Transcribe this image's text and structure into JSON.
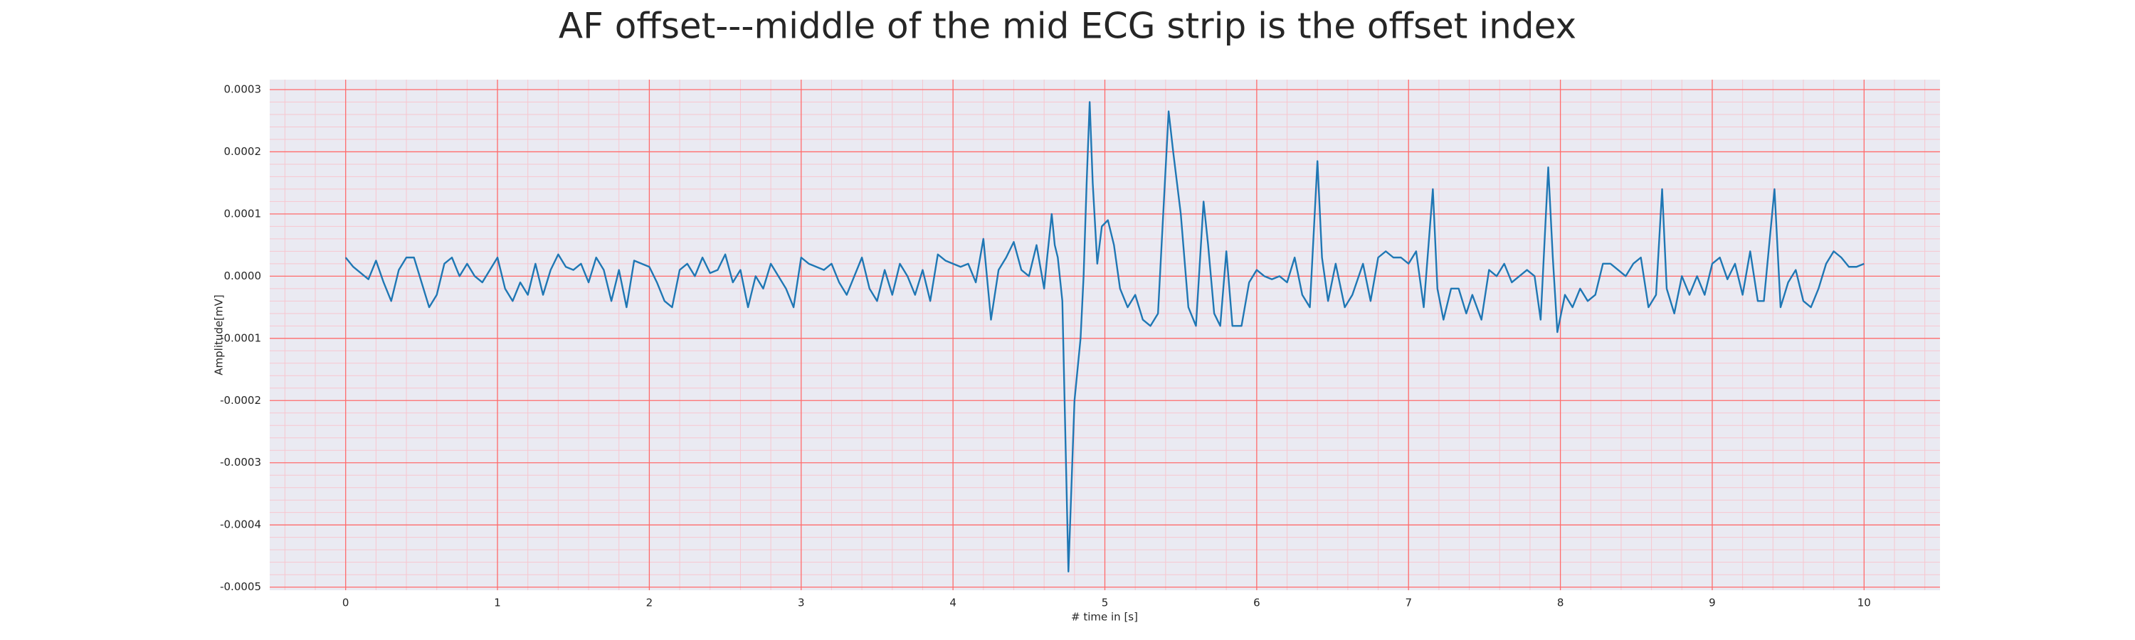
{
  "chart_data": {
    "type": "line",
    "title": "AF offset---middle of the mid ECG strip is the offset index",
    "xlabel": "# time in [s]",
    "ylabel": "Amplitude[mV]",
    "xlim": [
      -0.5,
      10.5
    ],
    "xticks": [
      0,
      1,
      2,
      3,
      4,
      5,
      6,
      7,
      8,
      9,
      10
    ],
    "ylim": [
      -0.000505,
      0.000316
    ],
    "yticks": [
      0.0003,
      0.0002,
      0.0001,
      {
        "value": 0,
        "label": "0.0000"
      },
      -0.0001,
      -0.0002,
      -0.0003,
      -0.0004,
      -0.0005
    ],
    "grid": true,
    "minor_grid": true,
    "series": [
      {
        "color": "#1f77b4",
        "x": [
          0,
          0.05,
          0.1,
          0.15,
          0.2,
          0.25,
          0.3,
          0.35,
          0.4,
          0.45,
          0.5,
          0.55,
          0.6,
          0.65,
          0.7,
          0.75,
          0.8,
          0.85,
          0.9,
          0.95,
          1,
          1.05,
          1.1,
          1.15,
          1.2,
          1.25,
          1.3,
          1.35,
          1.4,
          1.45,
          1.5,
          1.55,
          1.6,
          1.65,
          1.7,
          1.75,
          1.8,
          1.85,
          1.9,
          1.95,
          2,
          2.05,
          2.1,
          2.15,
          2.2,
          2.25,
          2.3,
          2.35,
          2.4,
          2.45,
          2.5,
          2.55,
          2.6,
          2.65,
          2.7,
          2.75,
          2.8,
          2.85,
          2.9,
          2.95,
          3,
          3.05,
          3.1,
          3.15,
          3.2,
          3.25,
          3.3,
          3.35,
          3.4,
          3.45,
          3.5,
          3.55,
          3.6,
          3.65,
          3.7,
          3.75,
          3.8,
          3.85,
          3.9,
          3.95,
          4,
          4.05,
          4.1,
          4.15,
          4.2,
          4.25,
          4.3,
          4.35,
          4.4,
          4.45,
          4.5,
          4.55,
          4.6,
          4.62,
          4.65,
          4.67,
          4.69,
          4.72,
          4.76,
          4.8,
          4.84,
          4.86,
          4.88,
          4.9,
          4.92,
          4.95,
          4.98,
          5.02,
          5.06,
          5.1,
          5.15,
          5.2,
          5.25,
          5.3,
          5.35,
          5.38,
          5.42,
          5.45,
          5.5,
          5.55,
          5.6,
          5.65,
          5.68,
          5.72,
          5.76,
          5.8,
          5.84,
          5.9,
          5.95,
          6,
          6.05,
          6.1,
          6.15,
          6.2,
          6.25,
          6.3,
          6.35,
          6.4,
          6.43,
          6.47,
          6.52,
          6.58,
          6.63,
          6.7,
          6.75,
          6.8,
          6.85,
          6.9,
          6.95,
          7,
          7.05,
          7.1,
          7.16,
          7.19,
          7.23,
          7.28,
          7.33,
          7.38,
          7.42,
          7.48,
          7.53,
          7.58,
          7.63,
          7.68,
          7.73,
          7.78,
          7.83,
          7.87,
          7.92,
          7.95,
          7.98,
          8.03,
          8.08,
          8.13,
          8.18,
          8.23,
          8.28,
          8.33,
          8.38,
          8.43,
          8.48,
          8.53,
          8.58,
          8.63,
          8.67,
          8.7,
          8.75,
          8.8,
          8.85,
          8.9,
          8.95,
          9,
          9.05,
          9.1,
          9.15,
          9.2,
          9.25,
          9.3,
          9.34,
          9.41,
          9.45,
          9.5,
          9.55,
          9.6,
          9.65,
          9.7,
          9.75,
          9.8,
          9.85,
          9.9,
          9.95,
          10
        ],
        "values": [
          3e-05,
          1.5e-05,
          5e-06,
          -5e-06,
          2.5e-05,
          -1e-05,
          -4e-05,
          1e-05,
          3e-05,
          3e-05,
          -1e-05,
          -5e-05,
          -3e-05,
          2e-05,
          3e-05,
          0,
          2e-05,
          0,
          -1e-05,
          1e-05,
          3e-05,
          -2e-05,
          -4e-05,
          -1e-05,
          -3e-05,
          2e-05,
          -3e-05,
          1e-05,
          3.5e-05,
          1.5e-05,
          1e-05,
          2e-05,
          -1e-05,
          3e-05,
          1e-05,
          -4e-05,
          1e-05,
          -5e-05,
          2.5e-05,
          2e-05,
          1.5e-05,
          -1e-05,
          -4e-05,
          -5e-05,
          1e-05,
          2e-05,
          0,
          3e-05,
          5e-06,
          1e-05,
          3.5e-05,
          -1e-05,
          1e-05,
          -5e-05,
          0,
          -2e-05,
          2e-05,
          0,
          -2e-05,
          -5e-05,
          3e-05,
          2e-05,
          1.5e-05,
          1e-05,
          2e-05,
          -1e-05,
          -3e-05,
          0,
          3e-05,
          -2e-05,
          -4e-05,
          1e-05,
          -3e-05,
          2e-05,
          0,
          -3e-05,
          1e-05,
          -4e-05,
          3.5e-05,
          2.5e-05,
          2e-05,
          1.5e-05,
          2e-05,
          -1e-05,
          6e-05,
          -7e-05,
          1e-05,
          3e-05,
          5.5e-05,
          1e-05,
          0,
          5e-05,
          -2e-05,
          3e-05,
          0.0001,
          5e-05,
          3e-05,
          -4e-05,
          -0.000475,
          -0.0002,
          -0.0001,
          0,
          0.00015,
          0.00028,
          0.00015,
          2e-05,
          8e-05,
          9e-05,
          5e-05,
          -2e-05,
          -5e-05,
          -3e-05,
          -7e-05,
          -8e-05,
          -6e-05,
          8e-05,
          0.000265,
          0.0002,
          0.0001,
          -5e-05,
          -8e-05,
          0.00012,
          5e-05,
          -6e-05,
          -8e-05,
          4e-05,
          -8e-05,
          -8e-05,
          -1e-05,
          1e-05,
          0,
          -5e-06,
          0,
          -1e-05,
          3e-05,
          -3e-05,
          -5e-05,
          0.000185,
          3e-05,
          -4e-05,
          2e-05,
          -5e-05,
          -3e-05,
          2e-05,
          -4e-05,
          3e-05,
          4e-05,
          3e-05,
          3e-05,
          2e-05,
          4e-05,
          -5e-05,
          0.00014,
          -2e-05,
          -7e-05,
          -2e-05,
          -2e-05,
          -6e-05,
          -3e-05,
          -7e-05,
          1e-05,
          0,
          2e-05,
          -1e-05,
          0,
          1e-05,
          0,
          -7e-05,
          0.000175,
          3e-05,
          -9e-05,
          -3e-05,
          -5e-05,
          -2e-05,
          -4e-05,
          -3e-05,
          2e-05,
          2e-05,
          1e-05,
          0,
          2e-05,
          3e-05,
          -5e-05,
          -3e-05,
          0.00014,
          -2e-05,
          -6e-05,
          0,
          -3e-05,
          0,
          -3e-05,
          2e-05,
          3e-05,
          -5e-06,
          2e-05,
          -3e-05,
          4e-05,
          -4e-05,
          -4e-05,
          0.00014,
          -5e-05,
          -1e-05,
          1e-05,
          -4e-05,
          -5e-05,
          -2e-05,
          2e-05,
          4e-05,
          3e-05,
          1.5e-05,
          1.5e-05,
          2e-05
        ]
      }
    ]
  }
}
